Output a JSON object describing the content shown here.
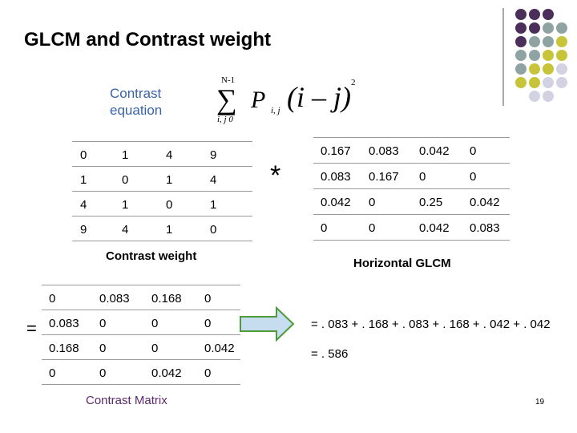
{
  "title": "GLCM and Contrast weight",
  "equation": {
    "label": "Contrast equation",
    "upper": "N-1",
    "lower": "i, j 0",
    "symbol": "P",
    "subscript": "i, j",
    "term": "(i – j)",
    "exponent": "2"
  },
  "weight_table": {
    "rows": [
      [
        "0",
        "1",
        "4",
        "9"
      ],
      [
        "1",
        "0",
        "1",
        "4"
      ],
      [
        "4",
        "1",
        "0",
        "1"
      ],
      [
        "9",
        "4",
        "1",
        "0"
      ]
    ],
    "caption": "Contrast weight"
  },
  "operator": "*",
  "glcm_table": {
    "rows": [
      [
        "0.167",
        "0.083",
        "0.042",
        "0"
      ],
      [
        "0.083",
        "0.167",
        "0",
        "0"
      ],
      [
        "0.042",
        "0",
        "0.25",
        "0.042"
      ],
      [
        "0",
        "0",
        "0.042",
        "0.083"
      ]
    ],
    "caption": "Horizontal GLCM"
  },
  "equals": "=",
  "contrast_table": {
    "rows": [
      [
        "0",
        "0.083",
        "0.168",
        "0"
      ],
      [
        "0.083",
        "0",
        "0",
        "0"
      ],
      [
        "0.168",
        "0",
        "0",
        "0.042"
      ],
      [
        "0",
        "0",
        "0.042",
        "0"
      ]
    ],
    "caption": "Contrast Matrix"
  },
  "result": {
    "sum": "= . 083 + . 168 + . 083 + . 168 + . 042 + . 042",
    "total": "= . 586"
  },
  "page_number": "19"
}
